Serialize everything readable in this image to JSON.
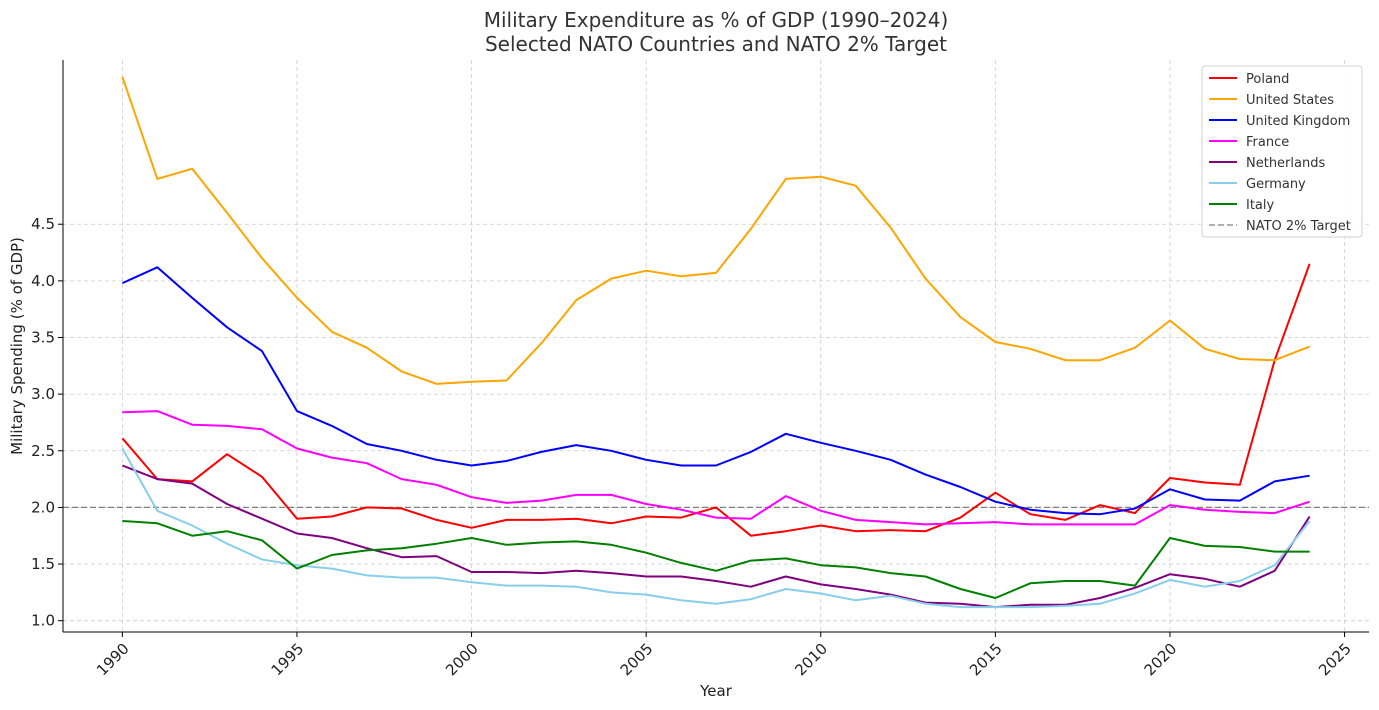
{
  "chart_data": {
    "type": "line",
    "title": "Military Expenditure as % of GDP (1990–2024)",
    "subtitle": "Selected NATO Countries and NATO 2% Target",
    "xlabel": "Year",
    "ylabel": "Military Spending (% of GDP)",
    "xlim": [
      1988.3,
      2025.7
    ],
    "ylim": [
      0.9,
      5.95
    ],
    "grid": true,
    "legend_position": "top-right",
    "x_ticks": [
      "1990",
      "1995",
      "2000",
      "2005",
      "2010",
      "2015",
      "2020",
      "2025"
    ],
    "y_ticks": [
      "1.0",
      "1.5",
      "2.0",
      "2.5",
      "3.0",
      "3.5",
      "4.0",
      "4.5"
    ],
    "x": [
      1990,
      1991,
      1992,
      1993,
      1994,
      1995,
      1996,
      1997,
      1998,
      1999,
      2000,
      2001,
      2002,
      2003,
      2004,
      2005,
      2006,
      2007,
      2008,
      2009,
      2010,
      2011,
      2012,
      2013,
      2014,
      2015,
      2016,
      2017,
      2018,
      2019,
      2020,
      2021,
      2022,
      2023,
      2024
    ],
    "series": [
      {
        "name": "Poland",
        "color": "#ff0000",
        "values": [
          2.61,
          2.25,
          2.23,
          2.47,
          2.27,
          1.9,
          1.92,
          2.0,
          1.99,
          1.89,
          1.82,
          1.89,
          1.89,
          1.9,
          1.86,
          1.92,
          1.91,
          2.0,
          1.75,
          1.79,
          1.84,
          1.79,
          1.8,
          1.79,
          1.91,
          2.13,
          1.94,
          1.89,
          2.02,
          1.95,
          2.26,
          2.22,
          2.2,
          3.3,
          4.15
        ]
      },
      {
        "name": "United States",
        "color": "#ffa500",
        "values": [
          5.8,
          4.9,
          4.99,
          4.6,
          4.2,
          3.85,
          3.55,
          3.41,
          3.2,
          3.09,
          3.11,
          3.12,
          3.45,
          3.83,
          4.02,
          4.09,
          4.04,
          4.07,
          4.46,
          4.9,
          4.92,
          4.84,
          4.47,
          4.02,
          3.68,
          3.46,
          3.4,
          3.3,
          3.3,
          3.41,
          3.65,
          3.4,
          3.31,
          3.3,
          3.42
        ]
      },
      {
        "name": "United Kingdom",
        "color": "#0000ff",
        "values": [
          3.98,
          4.12,
          3.85,
          3.59,
          3.38,
          2.85,
          2.72,
          2.56,
          2.5,
          2.42,
          2.37,
          2.41,
          2.49,
          2.55,
          2.5,
          2.42,
          2.37,
          2.37,
          2.49,
          2.65,
          2.57,
          2.5,
          2.42,
          2.29,
          2.18,
          2.05,
          1.98,
          1.95,
          1.94,
          1.99,
          2.16,
          2.07,
          2.06,
          2.23,
          2.28
        ]
      },
      {
        "name": "France",
        "color": "#ff00ff",
        "values": [
          2.84,
          2.85,
          2.73,
          2.72,
          2.69,
          2.52,
          2.44,
          2.39,
          2.25,
          2.2,
          2.09,
          2.04,
          2.06,
          2.11,
          2.11,
          2.03,
          1.98,
          1.91,
          1.9,
          2.1,
          1.97,
          1.89,
          1.87,
          1.85,
          1.86,
          1.87,
          1.85,
          1.85,
          1.85,
          1.85,
          2.02,
          1.98,
          1.96,
          1.95,
          2.05
        ]
      },
      {
        "name": "Netherlands",
        "color": "#800080",
        "values": [
          2.37,
          2.25,
          2.21,
          2.03,
          1.9,
          1.77,
          1.73,
          1.64,
          1.56,
          1.57,
          1.43,
          1.43,
          1.42,
          1.44,
          1.42,
          1.39,
          1.39,
          1.35,
          1.3,
          1.39,
          1.32,
          1.28,
          1.23,
          1.16,
          1.15,
          1.12,
          1.14,
          1.14,
          1.2,
          1.29,
          1.41,
          1.37,
          1.3,
          1.44,
          1.92
        ]
      },
      {
        "name": "Germany",
        "color": "#87ceeb",
        "values": [
          2.52,
          1.97,
          1.84,
          1.68,
          1.54,
          1.49,
          1.46,
          1.4,
          1.38,
          1.38,
          1.34,
          1.31,
          1.31,
          1.3,
          1.25,
          1.23,
          1.18,
          1.15,
          1.19,
          1.28,
          1.24,
          1.18,
          1.22,
          1.15,
          1.12,
          1.12,
          1.12,
          1.13,
          1.15,
          1.24,
          1.36,
          1.3,
          1.35,
          1.49,
          1.88
        ]
      },
      {
        "name": "Italy",
        "color": "#008000",
        "values": [
          1.88,
          1.86,
          1.75,
          1.79,
          1.71,
          1.46,
          1.58,
          1.62,
          1.64,
          1.68,
          1.73,
          1.67,
          1.69,
          1.7,
          1.67,
          1.6,
          1.51,
          1.44,
          1.53,
          1.55,
          1.49,
          1.47,
          1.42,
          1.39,
          1.28,
          1.2,
          1.33,
          1.35,
          1.35,
          1.31,
          1.73,
          1.66,
          1.65,
          1.61,
          1.61
        ]
      }
    ],
    "reference_line": {
      "name": "NATO 2% Target",
      "value": 2.0,
      "color": "#808080"
    }
  }
}
